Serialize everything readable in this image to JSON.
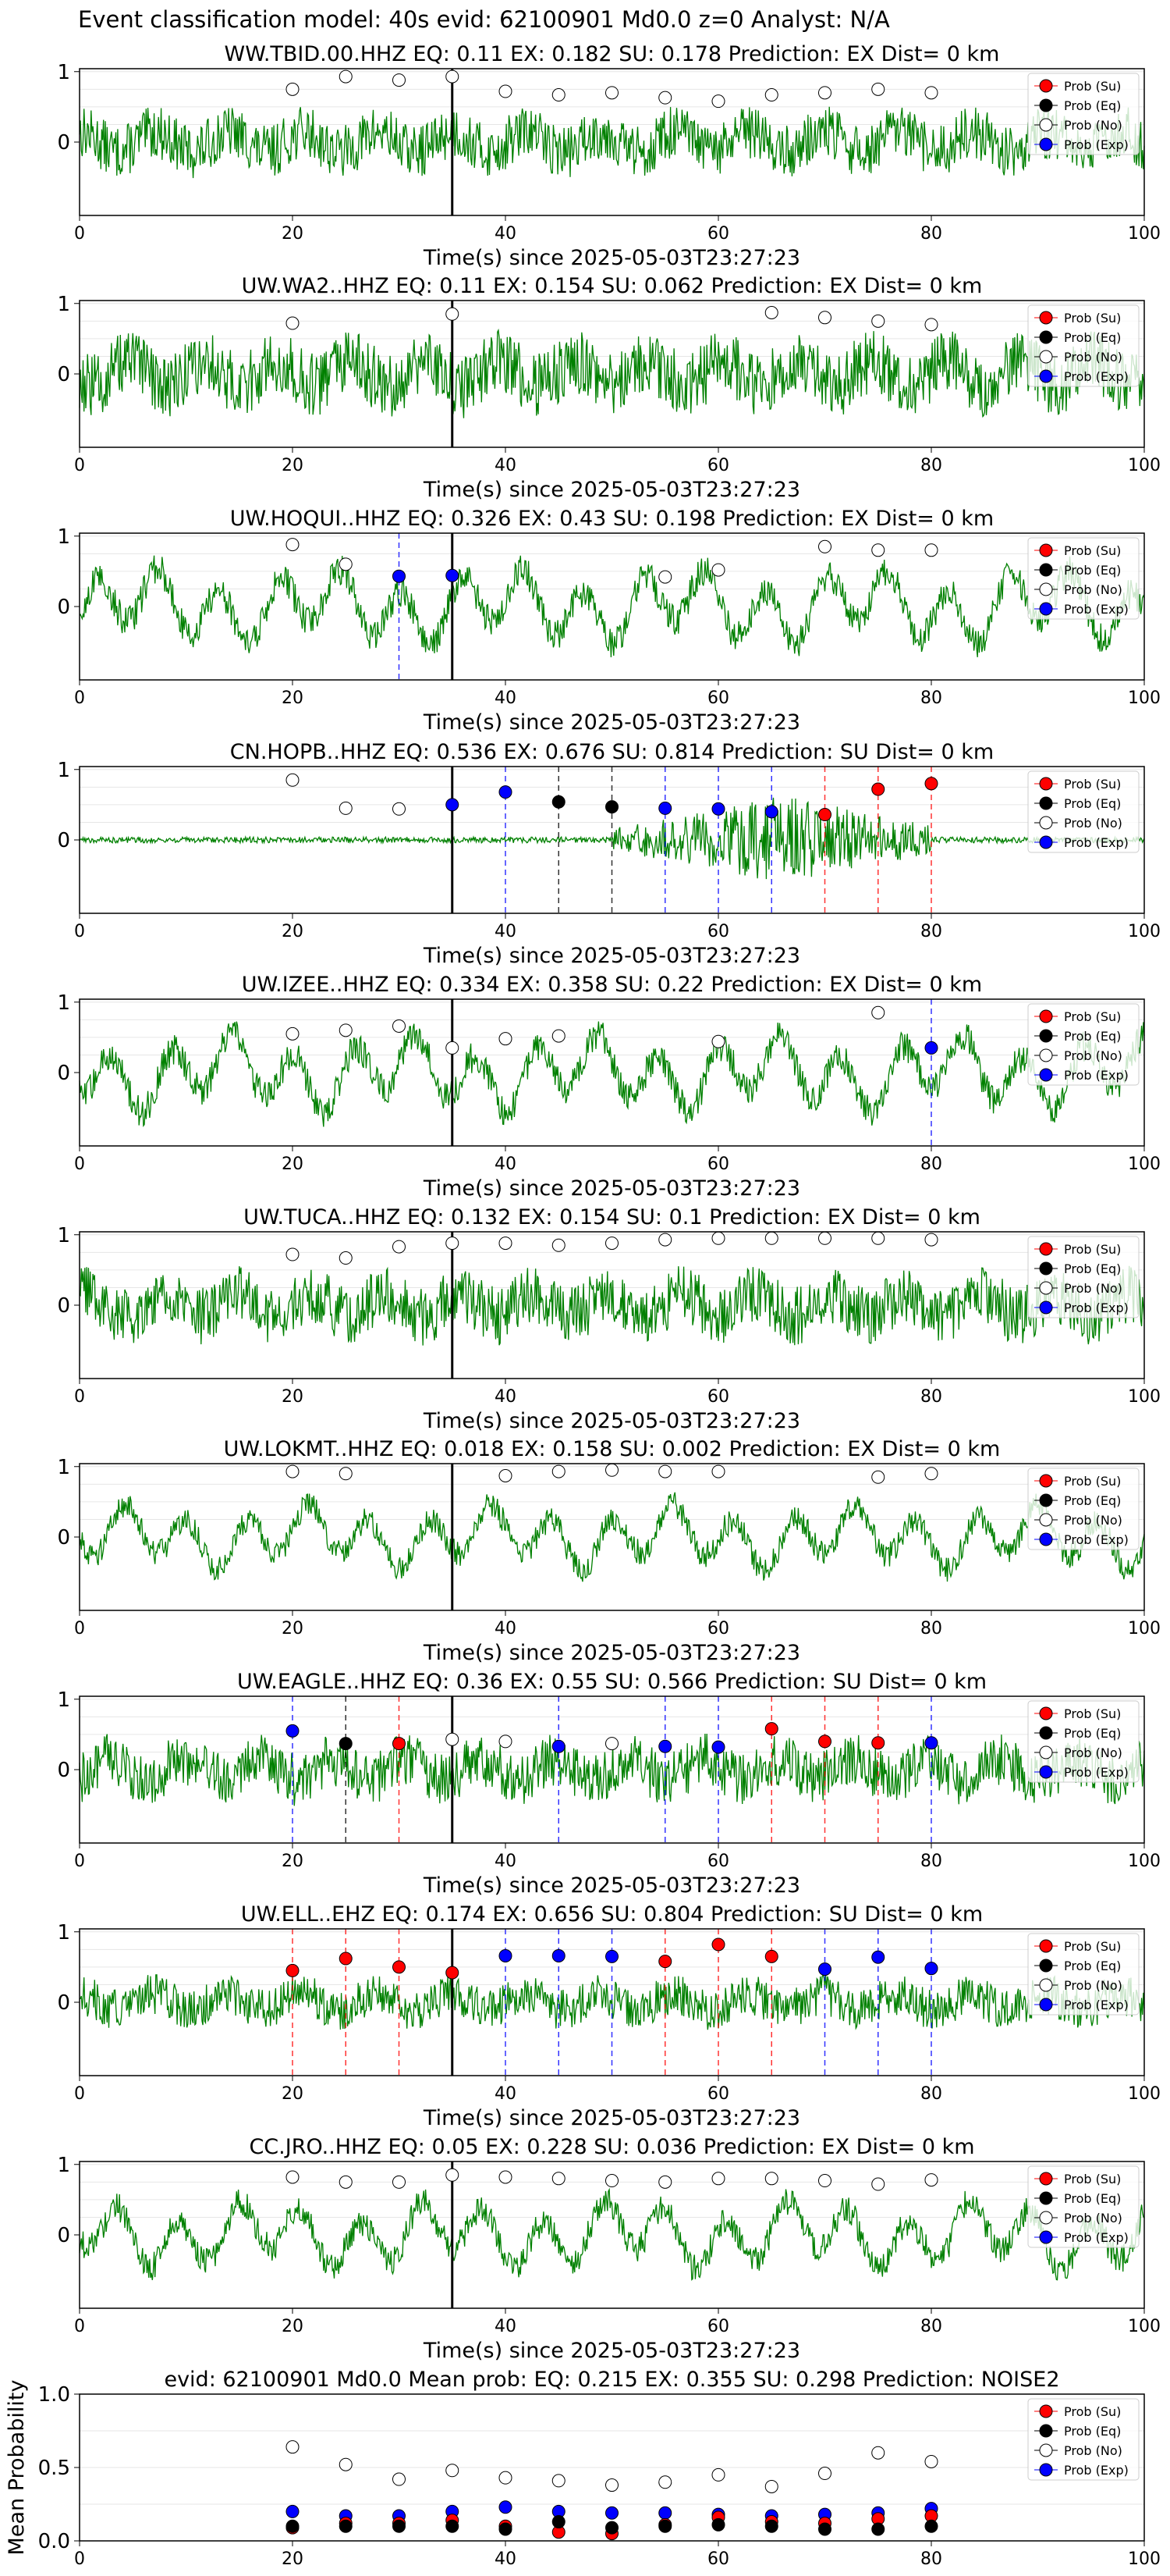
{
  "figure_title": "Event classification model: 40s evid: 62100901 Md0.0 z=0 Analyst: N/A",
  "legend_labels": [
    "Prob (Su)",
    "Prob (Eq)",
    "Prob (No)",
    "Prob (Exp)"
  ],
  "colors": {
    "su": "#ff0000",
    "eq": "#000000",
    "no": "#ffffff",
    "exp": "#0000ff",
    "trace": "#008000"
  },
  "chart_data": [
    {
      "type": "line",
      "title": "WW.TBID.00.HHZ   EQ: 0.11  EX: 0.182  SU: 0.178   Prediction: EX    Dist= 0 km",
      "xlabel": "Time(s) since 2025-05-03T23:27:23",
      "ylabel": "",
      "xlim": [
        0,
        100
      ],
      "x_ticks": [
        "0",
        "20",
        "40",
        "60",
        "80",
        "100"
      ],
      "y_ticks": [
        "0",
        "1"
      ],
      "trace": {
        "amplitude": 0.45,
        "style": "noise"
      },
      "pick_time": 35,
      "points": [
        {
          "x": 20,
          "y": 0.75,
          "cls": "no"
        },
        {
          "x": 25,
          "y": 0.93,
          "cls": "no"
        },
        {
          "x": 30,
          "y": 0.88,
          "cls": "no"
        },
        {
          "x": 35,
          "y": 0.93,
          "cls": "no"
        },
        {
          "x": 40,
          "y": 0.72,
          "cls": "no"
        },
        {
          "x": 45,
          "y": 0.67,
          "cls": "no"
        },
        {
          "x": 50,
          "y": 0.7,
          "cls": "no"
        },
        {
          "x": 55,
          "y": 0.63,
          "cls": "no"
        },
        {
          "x": 60,
          "y": 0.58,
          "cls": "no"
        },
        {
          "x": 65,
          "y": 0.67,
          "cls": "no"
        },
        {
          "x": 70,
          "y": 0.7,
          "cls": "no"
        },
        {
          "x": 75,
          "y": 0.75,
          "cls": "no"
        },
        {
          "x": 80,
          "y": 0.7,
          "cls": "no"
        }
      ]
    },
    {
      "type": "line",
      "title": "UW.WA2..HHZ   EQ: 0.11  EX: 0.154  SU: 0.062   Prediction: EX    Dist= 0 km",
      "xlabel": "Time(s) since 2025-05-03T23:27:23",
      "ylabel": "",
      "xlim": [
        0,
        100
      ],
      "x_ticks": [
        "0",
        "20",
        "40",
        "60",
        "80",
        "100"
      ],
      "y_ticks": [
        "0",
        "1"
      ],
      "trace": {
        "amplitude": 0.55,
        "style": "noise"
      },
      "pick_time": 35,
      "points": [
        {
          "x": 20,
          "y": 0.72,
          "cls": "no"
        },
        {
          "x": 35,
          "y": 0.85,
          "cls": "no"
        },
        {
          "x": 65,
          "y": 0.87,
          "cls": "no"
        },
        {
          "x": 70,
          "y": 0.8,
          "cls": "no"
        },
        {
          "x": 75,
          "y": 0.75,
          "cls": "no"
        },
        {
          "x": 80,
          "y": 0.7,
          "cls": "no"
        }
      ]
    },
    {
      "type": "line",
      "title": "UW.HOQUI..HHZ   EQ: 0.326  EX: 0.43  SU: 0.198   Prediction: EX    Dist= 0 km",
      "xlabel": "Time(s) since 2025-05-03T23:27:23",
      "ylabel": "",
      "xlim": [
        0,
        100
      ],
      "x_ticks": [
        "0",
        "20",
        "40",
        "60",
        "80",
        "100"
      ],
      "y_ticks": [
        "0",
        "1"
      ],
      "trace": {
        "amplitude": 0.6,
        "style": "wave"
      },
      "pick_time": 35,
      "points": [
        {
          "x": 20,
          "y": 0.88,
          "cls": "no"
        },
        {
          "x": 25,
          "y": 0.6,
          "cls": "no"
        },
        {
          "x": 30,
          "y": 0.43,
          "cls": "exp"
        },
        {
          "x": 35,
          "y": 0.44,
          "cls": "exp"
        },
        {
          "x": 55,
          "y": 0.42,
          "cls": "no"
        },
        {
          "x": 60,
          "y": 0.52,
          "cls": "no"
        },
        {
          "x": 70,
          "y": 0.85,
          "cls": "no"
        },
        {
          "x": 75,
          "y": 0.8,
          "cls": "no"
        },
        {
          "x": 80,
          "y": 0.8,
          "cls": "no"
        }
      ]
    },
    {
      "type": "line",
      "title": "CN.HOPB..HHZ   EQ: 0.536  EX: 0.676  SU: 0.814   Prediction: SU    Dist= 0 km",
      "xlabel": "Time(s) since 2025-05-03T23:27:23",
      "ylabel": "",
      "xlim": [
        0,
        100
      ],
      "x_ticks": [
        "0",
        "20",
        "40",
        "60",
        "80",
        "100"
      ],
      "y_ticks": [
        "0",
        "1"
      ],
      "trace": {
        "amplitude": 0.04,
        "style": "quiet"
      },
      "pick_time": 35,
      "points": [
        {
          "x": 20,
          "y": 0.85,
          "cls": "no"
        },
        {
          "x": 25,
          "y": 0.45,
          "cls": "no"
        },
        {
          "x": 30,
          "y": 0.44,
          "cls": "no"
        },
        {
          "x": 35,
          "y": 0.5,
          "cls": "exp"
        },
        {
          "x": 40,
          "y": 0.68,
          "cls": "exp"
        },
        {
          "x": 45,
          "y": 0.54,
          "cls": "eq"
        },
        {
          "x": 50,
          "y": 0.47,
          "cls": "eq"
        },
        {
          "x": 55,
          "y": 0.45,
          "cls": "exp"
        },
        {
          "x": 60,
          "y": 0.44,
          "cls": "exp"
        },
        {
          "x": 65,
          "y": 0.4,
          "cls": "exp"
        },
        {
          "x": 70,
          "y": 0.36,
          "cls": "su"
        },
        {
          "x": 75,
          "y": 0.72,
          "cls": "su"
        },
        {
          "x": 80,
          "y": 0.8,
          "cls": "su"
        }
      ]
    },
    {
      "type": "line",
      "title": "UW.IZEE..HHZ   EQ: 0.334  EX: 0.358  SU: 0.22   Prediction: EX    Dist= 0 km",
      "xlabel": "Time(s) since 2025-05-03T23:27:23",
      "ylabel": "",
      "xlim": [
        0,
        100
      ],
      "x_ticks": [
        "0",
        "20",
        "40",
        "60",
        "80",
        "100"
      ],
      "y_ticks": [
        "0",
        "1"
      ],
      "trace": {
        "amplitude": 0.6,
        "style": "wave"
      },
      "pick_time": 35,
      "points": [
        {
          "x": 20,
          "y": 0.55,
          "cls": "no"
        },
        {
          "x": 25,
          "y": 0.6,
          "cls": "no"
        },
        {
          "x": 30,
          "y": 0.66,
          "cls": "no"
        },
        {
          "x": 35,
          "y": 0.35,
          "cls": "no"
        },
        {
          "x": 40,
          "y": 0.48,
          "cls": "no"
        },
        {
          "x": 45,
          "y": 0.52,
          "cls": "no"
        },
        {
          "x": 60,
          "y": 0.44,
          "cls": "no"
        },
        {
          "x": 75,
          "y": 0.85,
          "cls": "no"
        },
        {
          "x": 80,
          "y": 0.35,
          "cls": "exp"
        }
      ]
    },
    {
      "type": "line",
      "title": "UW.TUCA..HHZ   EQ: 0.132  EX: 0.154  SU: 0.1   Prediction: EX    Dist= 0 km",
      "xlabel": "Time(s) since 2025-05-03T23:27:23",
      "ylabel": "",
      "xlim": [
        0,
        100
      ],
      "x_ticks": [
        "0",
        "20",
        "40",
        "60",
        "80",
        "100"
      ],
      "y_ticks": [
        "0",
        "1"
      ],
      "trace": {
        "amplitude": 0.5,
        "style": "noise"
      },
      "pick_time": 35,
      "points": [
        {
          "x": 20,
          "y": 0.72,
          "cls": "no"
        },
        {
          "x": 25,
          "y": 0.67,
          "cls": "no"
        },
        {
          "x": 30,
          "y": 0.83,
          "cls": "no"
        },
        {
          "x": 35,
          "y": 0.88,
          "cls": "no"
        },
        {
          "x": 40,
          "y": 0.88,
          "cls": "no"
        },
        {
          "x": 45,
          "y": 0.85,
          "cls": "no"
        },
        {
          "x": 50,
          "y": 0.88,
          "cls": "no"
        },
        {
          "x": 55,
          "y": 0.93,
          "cls": "no"
        },
        {
          "x": 60,
          "y": 0.95,
          "cls": "no"
        },
        {
          "x": 65,
          "y": 0.95,
          "cls": "no"
        },
        {
          "x": 70,
          "y": 0.95,
          "cls": "no"
        },
        {
          "x": 75,
          "y": 0.95,
          "cls": "no"
        },
        {
          "x": 80,
          "y": 0.93,
          "cls": "no"
        }
      ]
    },
    {
      "type": "line",
      "title": "UW.LOKMT..HHZ   EQ: 0.018  EX: 0.158  SU: 0.002   Prediction: EX    Dist= 0 km",
      "xlabel": "Time(s) since 2025-05-03T23:27:23",
      "ylabel": "",
      "xlim": [
        0,
        100
      ],
      "x_ticks": [
        "0",
        "20",
        "40",
        "60",
        "80",
        "100"
      ],
      "y_ticks": [
        "0",
        "1"
      ],
      "trace": {
        "amplitude": 0.5,
        "style": "wave"
      },
      "pick_time": 35,
      "points": [
        {
          "x": 20,
          "y": 0.93,
          "cls": "no"
        },
        {
          "x": 25,
          "y": 0.9,
          "cls": "no"
        },
        {
          "x": 40,
          "y": 0.87,
          "cls": "no"
        },
        {
          "x": 45,
          "y": 0.93,
          "cls": "no"
        },
        {
          "x": 50,
          "y": 0.95,
          "cls": "no"
        },
        {
          "x": 55,
          "y": 0.93,
          "cls": "no"
        },
        {
          "x": 60,
          "y": 0.93,
          "cls": "no"
        },
        {
          "x": 75,
          "y": 0.85,
          "cls": "no"
        },
        {
          "x": 80,
          "y": 0.9,
          "cls": "no"
        }
      ]
    },
    {
      "type": "line",
      "title": "UW.EAGLE..HHZ   EQ: 0.36  EX: 0.55  SU: 0.566   Prediction: SU    Dist= 0 km",
      "xlabel": "Time(s) since 2025-05-03T23:27:23",
      "ylabel": "",
      "xlim": [
        0,
        100
      ],
      "x_ticks": [
        "0",
        "20",
        "40",
        "60",
        "80",
        "100"
      ],
      "y_ticks": [
        "0",
        "1"
      ],
      "trace": {
        "amplitude": 0.45,
        "style": "noise"
      },
      "pick_time": 35,
      "points": [
        {
          "x": 20,
          "y": 0.55,
          "cls": "exp"
        },
        {
          "x": 25,
          "y": 0.37,
          "cls": "eq"
        },
        {
          "x": 30,
          "y": 0.37,
          "cls": "su"
        },
        {
          "x": 35,
          "y": 0.43,
          "cls": "no"
        },
        {
          "x": 40,
          "y": 0.4,
          "cls": "no"
        },
        {
          "x": 45,
          "y": 0.33,
          "cls": "exp"
        },
        {
          "x": 50,
          "y": 0.37,
          "cls": "no"
        },
        {
          "x": 55,
          "y": 0.33,
          "cls": "exp"
        },
        {
          "x": 60,
          "y": 0.32,
          "cls": "exp"
        },
        {
          "x": 65,
          "y": 0.58,
          "cls": "su"
        },
        {
          "x": 70,
          "y": 0.4,
          "cls": "su"
        },
        {
          "x": 75,
          "y": 0.38,
          "cls": "su"
        },
        {
          "x": 80,
          "y": 0.38,
          "cls": "exp"
        }
      ]
    },
    {
      "type": "line",
      "title": "UW.ELL..EHZ   EQ: 0.174  EX: 0.656  SU: 0.804   Prediction: SU    Dist= 0 km",
      "xlabel": "Time(s) since 2025-05-03T23:27:23",
      "ylabel": "",
      "xlim": [
        0,
        100
      ],
      "x_ticks": [
        "0",
        "20",
        "40",
        "60",
        "80",
        "100"
      ],
      "y_ticks": [
        "0",
        "1"
      ],
      "trace": {
        "amplitude": 0.35,
        "style": "noise"
      },
      "pick_time": 35,
      "points": [
        {
          "x": 20,
          "y": 0.45,
          "cls": "su"
        },
        {
          "x": 25,
          "y": 0.62,
          "cls": "su"
        },
        {
          "x": 30,
          "y": 0.5,
          "cls": "su"
        },
        {
          "x": 35,
          "y": 0.42,
          "cls": "su"
        },
        {
          "x": 40,
          "y": 0.66,
          "cls": "exp"
        },
        {
          "x": 45,
          "y": 0.66,
          "cls": "exp"
        },
        {
          "x": 50,
          "y": 0.65,
          "cls": "exp"
        },
        {
          "x": 55,
          "y": 0.58,
          "cls": "su"
        },
        {
          "x": 60,
          "y": 0.82,
          "cls": "su"
        },
        {
          "x": 65,
          "y": 0.65,
          "cls": "su"
        },
        {
          "x": 70,
          "y": 0.47,
          "cls": "exp"
        },
        {
          "x": 75,
          "y": 0.64,
          "cls": "exp"
        },
        {
          "x": 80,
          "y": 0.48,
          "cls": "exp"
        }
      ]
    },
    {
      "type": "line",
      "title": "CC.JRO..HHZ   EQ: 0.05  EX: 0.228  SU: 0.036   Prediction: EX    Dist= 0 km",
      "xlabel": "Time(s) since 2025-05-03T23:27:23",
      "ylabel": "",
      "xlim": [
        0,
        100
      ],
      "x_ticks": [
        "0",
        "20",
        "40",
        "60",
        "80",
        "100"
      ],
      "y_ticks": [
        "0",
        "1"
      ],
      "trace": {
        "amplitude": 0.55,
        "style": "wave"
      },
      "pick_time": 35,
      "points": [
        {
          "x": 20,
          "y": 0.82,
          "cls": "no"
        },
        {
          "x": 25,
          "y": 0.75,
          "cls": "no"
        },
        {
          "x": 30,
          "y": 0.75,
          "cls": "no"
        },
        {
          "x": 35,
          "y": 0.85,
          "cls": "no"
        },
        {
          "x": 40,
          "y": 0.82,
          "cls": "no"
        },
        {
          "x": 45,
          "y": 0.8,
          "cls": "no"
        },
        {
          "x": 50,
          "y": 0.77,
          "cls": "no"
        },
        {
          "x": 55,
          "y": 0.75,
          "cls": "no"
        },
        {
          "x": 60,
          "y": 0.8,
          "cls": "no"
        },
        {
          "x": 65,
          "y": 0.8,
          "cls": "no"
        },
        {
          "x": 70,
          "y": 0.77,
          "cls": "no"
        },
        {
          "x": 75,
          "y": 0.72,
          "cls": "no"
        },
        {
          "x": 80,
          "y": 0.78,
          "cls": "no"
        }
      ]
    },
    {
      "type": "scatter",
      "title": "evid: 62100901  Md0.0   Mean prob:   EQ: 0.215  EX: 0.355  SU: 0.298   Prediction: NOISE2",
      "xlabel": "",
      "ylabel": "Mean Probability",
      "xlim": [
        0,
        100
      ],
      "ylim": [
        0,
        1
      ],
      "x_ticks": [
        "0",
        "20",
        "40",
        "60",
        "80",
        "100"
      ],
      "y_ticks": [
        "0.0",
        "0.5",
        "1.0"
      ],
      "grid": true,
      "series": [
        {
          "name": "Prob (No)",
          "cls": "no",
          "x": [
            20,
            25,
            30,
            35,
            40,
            45,
            50,
            55,
            60,
            65,
            70,
            75,
            80
          ],
          "y": [
            0.64,
            0.52,
            0.42,
            0.48,
            0.43,
            0.41,
            0.38,
            0.4,
            0.45,
            0.37,
            0.46,
            0.6,
            0.54
          ]
        },
        {
          "name": "Prob (Exp)",
          "cls": "exp",
          "x": [
            20,
            25,
            30,
            35,
            40,
            45,
            50,
            55,
            60,
            65,
            70,
            75,
            80
          ],
          "y": [
            0.2,
            0.17,
            0.17,
            0.2,
            0.23,
            0.2,
            0.19,
            0.19,
            0.18,
            0.17,
            0.18,
            0.19,
            0.22
          ]
        },
        {
          "name": "Prob (Su)",
          "cls": "su",
          "x": [
            20,
            25,
            30,
            35,
            40,
            45,
            50,
            55,
            60,
            65,
            70,
            75,
            80
          ],
          "y": [
            0.09,
            0.12,
            0.12,
            0.14,
            0.1,
            0.06,
            0.05,
            0.11,
            0.16,
            0.13,
            0.12,
            0.15,
            0.17
          ]
        },
        {
          "name": "Prob (Eq)",
          "cls": "eq",
          "x": [
            20,
            25,
            30,
            35,
            40,
            45,
            50,
            55,
            60,
            65,
            70,
            75,
            80
          ],
          "y": [
            0.1,
            0.1,
            0.1,
            0.1,
            0.08,
            0.13,
            0.09,
            0.1,
            0.11,
            0.1,
            0.08,
            0.08,
            0.1
          ]
        }
      ]
    }
  ]
}
